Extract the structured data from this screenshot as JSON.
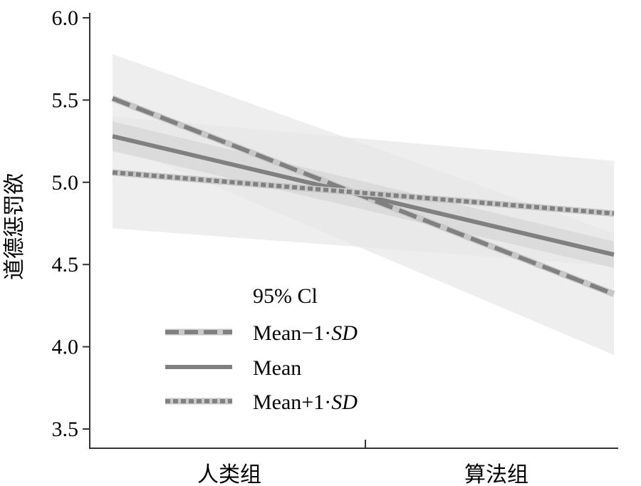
{
  "chart_data": {
    "type": "line",
    "title": "",
    "xlabel": "",
    "ylabel": "道德惩罚欲",
    "ylim": [
      3.5,
      6.0
    ],
    "yticks": [
      "3.5",
      "4.0",
      "4.5",
      "5.0",
      "5.5",
      "6.0"
    ],
    "categories": [
      "人类组",
      "算法组"
    ],
    "ci_label": "95% Cl",
    "series": [
      {
        "name": "Mean−1·SD",
        "name_main": "Mean−1·",
        "name_sd": "SD",
        "style": "dashed",
        "values": [
          5.51,
          4.32
        ],
        "ci_lower": [
          5.24,
          3.95
        ],
        "ci_upper": [
          5.78,
          4.69
        ]
      },
      {
        "name": "Mean",
        "name_main": "Mean",
        "name_sd": "",
        "style": "solid",
        "values": [
          5.28,
          4.56
        ],
        "ci_lower": [
          5.19,
          4.48
        ],
        "ci_upper": [
          5.37,
          4.64
        ]
      },
      {
        "name": "Mean+1·SD",
        "name_main": "Mean+1·",
        "name_sd": "SD",
        "style": "dotted",
        "values": [
          5.06,
          4.81
        ],
        "ci_lower": [
          4.72,
          4.49
        ],
        "ci_upper": [
          5.4,
          5.13
        ]
      }
    ],
    "colors": {
      "line": "#808080",
      "highlight": "#c8c8c8",
      "band_outer": "#e7e7e7",
      "band_inner": "#d6d6d6"
    },
    "legend_position": "bottom-left",
    "grid": false
  }
}
